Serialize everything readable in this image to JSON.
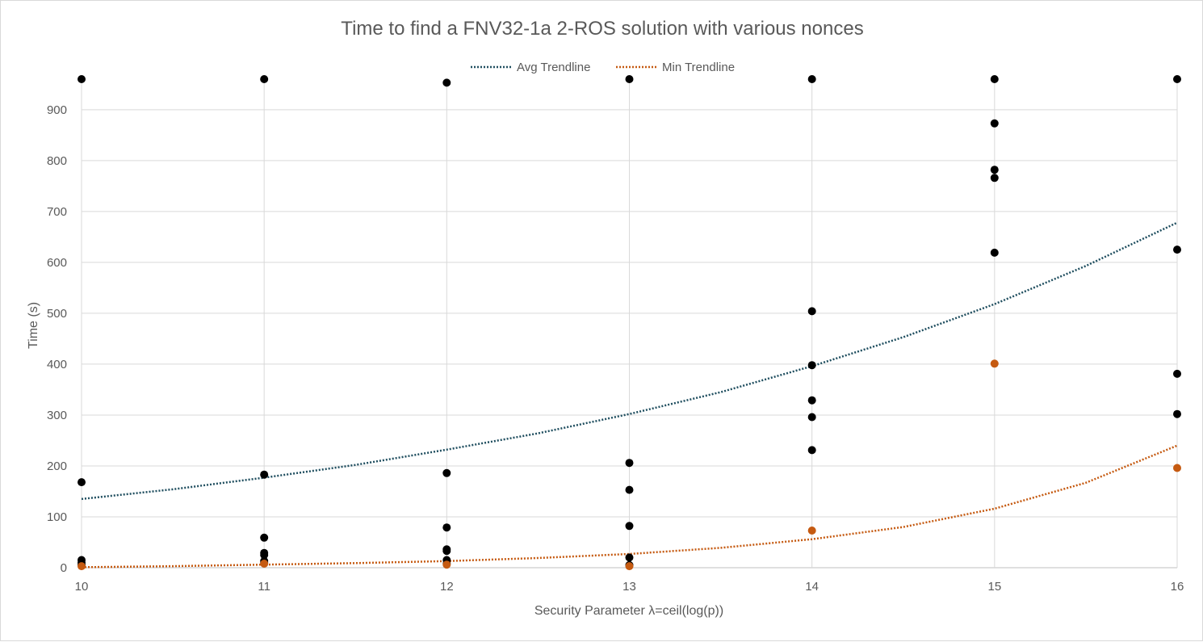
{
  "chart_data": {
    "type": "scatter",
    "title": "Time to find a FNV32-1a 2-ROS solution with various nonces",
    "xlabel": "Security Parameter λ=ceil(log(p))",
    "ylabel": "Time (s)",
    "xlim": [
      10,
      16
    ],
    "ylim": [
      0,
      960
    ],
    "x_ticks": [
      "10",
      "11",
      "12",
      "13",
      "14",
      "15",
      "16"
    ],
    "y_ticks": [
      "0",
      "100",
      "200",
      "300",
      "400",
      "500",
      "600",
      "700",
      "800",
      "900"
    ],
    "grid": true,
    "legend_position": "top",
    "series": [
      {
        "kind": "points",
        "color": "#000000",
        "points": [
          [
            10,
            960
          ],
          [
            10,
            168
          ],
          [
            10,
            15
          ],
          [
            10,
            10
          ],
          [
            10,
            5
          ],
          [
            11,
            960
          ],
          [
            11,
            183
          ],
          [
            11,
            59
          ],
          [
            11,
            29
          ],
          [
            11,
            25
          ],
          [
            11,
            13
          ],
          [
            11,
            10
          ],
          [
            12,
            953
          ],
          [
            12,
            186
          ],
          [
            12,
            79
          ],
          [
            12,
            36
          ],
          [
            12,
            33
          ],
          [
            12,
            15
          ],
          [
            12,
            8
          ],
          [
            13,
            960
          ],
          [
            13,
            206
          ],
          [
            13,
            153
          ],
          [
            13,
            82
          ],
          [
            13,
            20
          ],
          [
            13,
            5
          ],
          [
            14,
            960
          ],
          [
            14,
            504
          ],
          [
            14,
            398
          ],
          [
            14,
            329
          ],
          [
            14,
            296
          ],
          [
            14,
            231
          ],
          [
            15,
            960
          ],
          [
            15,
            873
          ],
          [
            15,
            782
          ],
          [
            15,
            766
          ],
          [
            15,
            619
          ],
          [
            16,
            960
          ],
          [
            16,
            625
          ],
          [
            16,
            381
          ],
          [
            16,
            302
          ]
        ]
      },
      {
        "kind": "points",
        "color": "#c55a11",
        "points": [
          [
            10,
            3
          ],
          [
            11,
            8
          ],
          [
            12,
            6
          ],
          [
            13,
            3
          ],
          [
            14,
            73
          ],
          [
            15,
            401
          ],
          [
            16,
            196
          ]
        ]
      },
      {
        "name": "Avg Trendline",
        "kind": "trendline",
        "color": "#1f4e5f",
        "points": [
          [
            10,
            135
          ],
          [
            10.5,
            154
          ],
          [
            11,
            177
          ],
          [
            11.5,
            202
          ],
          [
            12,
            232
          ],
          [
            12.5,
            264
          ],
          [
            13,
            302
          ],
          [
            13.5,
            345
          ],
          [
            14,
            396
          ],
          [
            14.5,
            453
          ],
          [
            15,
            518
          ],
          [
            15.5,
            593
          ],
          [
            16,
            678
          ]
        ]
      },
      {
        "name": "Min Trendline",
        "kind": "trendline",
        "color": "#c55a11",
        "points": [
          [
            10,
            1
          ],
          [
            10.5,
            3
          ],
          [
            11,
            6
          ],
          [
            11.5,
            9
          ],
          [
            12,
            13
          ],
          [
            12.5,
            19
          ],
          [
            13,
            27
          ],
          [
            13.5,
            39
          ],
          [
            14,
            56
          ],
          [
            14.5,
            80
          ],
          [
            15,
            116
          ],
          [
            15.5,
            167
          ],
          [
            16,
            240
          ]
        ]
      }
    ]
  }
}
